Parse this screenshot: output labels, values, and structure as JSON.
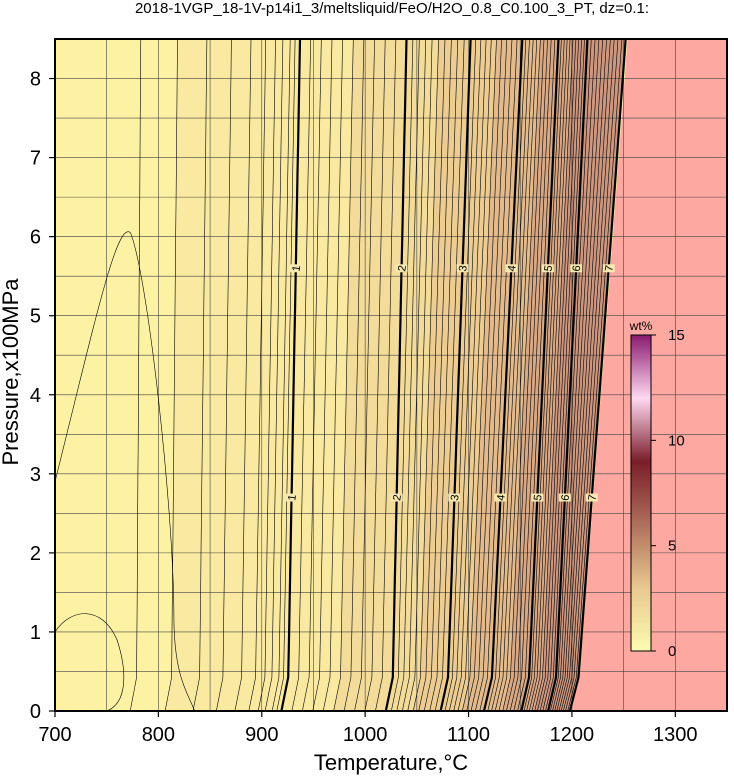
{
  "chart_data": {
    "type": "heatmap",
    "title": "2018-1VGP_18-1V-p14i1_3/meltsliquid/FeO/H2O_0.8_C0.100_3_PT, dz=0.1:",
    "xlabel": "Temperature,°C",
    "ylabel": "Pressure,x100MPa",
    "xlim": [
      700,
      1350
    ],
    "ylim": [
      0,
      8.5
    ],
    "x_ticks": [
      "700",
      "800",
      "900",
      "1000",
      "1100",
      "1200",
      "1300"
    ],
    "y_ticks": [
      "0",
      "1",
      "2",
      "3",
      "4",
      "5",
      "6",
      "7",
      "8"
    ],
    "grid": true,
    "colorbar": {
      "label": "wt%",
      "range": [
        0,
        15
      ],
      "ticks": [
        "0",
        "5",
        "10",
        "15"
      ],
      "placement": "right, inside plot"
    },
    "contour_interval": 0.1,
    "labeled_contours": [
      {
        "label": "1",
        "T_at_P0": 925,
        "T_at_P8_5": 937
      },
      {
        "label": "2",
        "T_at_P0": 1026,
        "T_at_P8_5": 1040
      },
      {
        "label": "3",
        "T_at_P0": 1079,
        "T_at_P8_5": 1102
      },
      {
        "label": "4",
        "T_at_P0": 1121,
        "T_at_P8_5": 1152
      },
      {
        "label": "5",
        "T_at_P0": 1157,
        "T_at_P8_5": 1187
      },
      {
        "label": "6",
        "T_at_P0": 1183,
        "T_at_P8_5": 1215
      },
      {
        "label": "7",
        "T_at_P0": 1204,
        "T_at_P8_5": 1252
      }
    ],
    "no_liquid_region": "T above about 1204 °C at 0 MPa to about 1252 °C at 850 MPa"
  }
}
